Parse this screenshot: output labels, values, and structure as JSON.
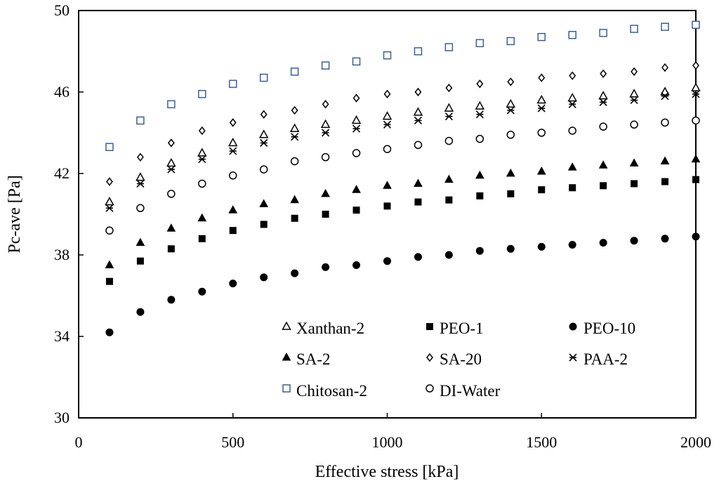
{
  "chart_data": {
    "type": "scatter",
    "title": "",
    "xlabel": "Effective stress [kPa]",
    "ylabel": "Pc-ave [Pa]",
    "xlim": [
      0,
      2000
    ],
    "ylim": [
      30,
      50
    ],
    "xticks": [
      0,
      500,
      1000,
      1500,
      2000
    ],
    "yticks": [
      30,
      34,
      38,
      42,
      46,
      50
    ],
    "grid": false,
    "legend_position": "lower-center",
    "x": [
      100,
      200,
      300,
      400,
      500,
      600,
      700,
      800,
      900,
      1000,
      1100,
      1200,
      1300,
      1400,
      1500,
      1600,
      1700,
      1800,
      1900,
      2000
    ],
    "series": [
      {
        "name": "Xanthan-2",
        "marker": "triangle-open",
        "color": "#000000",
        "values": [
          40.6,
          41.8,
          42.5,
          43.0,
          43.5,
          43.9,
          44.2,
          44.4,
          44.6,
          44.8,
          45.0,
          45.2,
          45.3,
          45.4,
          45.6,
          45.7,
          45.8,
          45.9,
          46.0,
          46.2
        ]
      },
      {
        "name": "PEO-1",
        "marker": "square-filled",
        "color": "#000000",
        "values": [
          36.7,
          37.7,
          38.3,
          38.8,
          39.2,
          39.5,
          39.8,
          40.0,
          40.2,
          40.4,
          40.6,
          40.7,
          40.9,
          41.0,
          41.2,
          41.3,
          41.4,
          41.5,
          41.6,
          41.7
        ]
      },
      {
        "name": "PEO-10",
        "marker": "circle-filled",
        "color": "#000000",
        "values": [
          34.2,
          35.2,
          35.8,
          36.2,
          36.6,
          36.9,
          37.1,
          37.4,
          37.5,
          37.7,
          37.9,
          38.0,
          38.2,
          38.3,
          38.4,
          38.5,
          38.6,
          38.7,
          38.8,
          38.9
        ]
      },
      {
        "name": "SA-2",
        "marker": "triangle-filled",
        "color": "#000000",
        "values": [
          37.5,
          38.6,
          39.3,
          39.8,
          40.2,
          40.5,
          40.7,
          41.0,
          41.2,
          41.4,
          41.5,
          41.7,
          41.9,
          42.0,
          42.1,
          42.3,
          42.4,
          42.5,
          42.6,
          42.7
        ]
      },
      {
        "name": "SA-20",
        "marker": "diamond-open",
        "color": "#000000",
        "values": [
          41.6,
          42.8,
          43.5,
          44.1,
          44.5,
          44.9,
          45.1,
          45.4,
          45.7,
          45.9,
          46.0,
          46.2,
          46.4,
          46.5,
          46.7,
          46.8,
          46.9,
          47.0,
          47.2,
          47.3
        ]
      },
      {
        "name": "PAA-2",
        "marker": "asterisk",
        "color": "#000000",
        "values": [
          40.3,
          41.5,
          42.2,
          42.7,
          43.1,
          43.5,
          43.8,
          44.0,
          44.2,
          44.4,
          44.6,
          44.8,
          44.9,
          45.1,
          45.2,
          45.4,
          45.5,
          45.6,
          45.8,
          45.9
        ]
      },
      {
        "name": "Chitosan-2",
        "marker": "square-open",
        "color": "#3a5f9c",
        "values": [
          43.3,
          44.6,
          45.4,
          45.9,
          46.4,
          46.7,
          47.0,
          47.3,
          47.5,
          47.8,
          48.0,
          48.2,
          48.4,
          48.5,
          48.7,
          48.8,
          48.9,
          49.1,
          49.2,
          49.3
        ]
      },
      {
        "name": "DI-Water",
        "marker": "circle-open",
        "color": "#000000",
        "values": [
          39.2,
          40.3,
          41.0,
          41.5,
          41.9,
          42.2,
          42.6,
          42.8,
          43.0,
          43.2,
          43.4,
          43.6,
          43.7,
          43.9,
          44.0,
          44.1,
          44.3,
          44.4,
          44.5,
          44.6
        ]
      }
    ]
  }
}
